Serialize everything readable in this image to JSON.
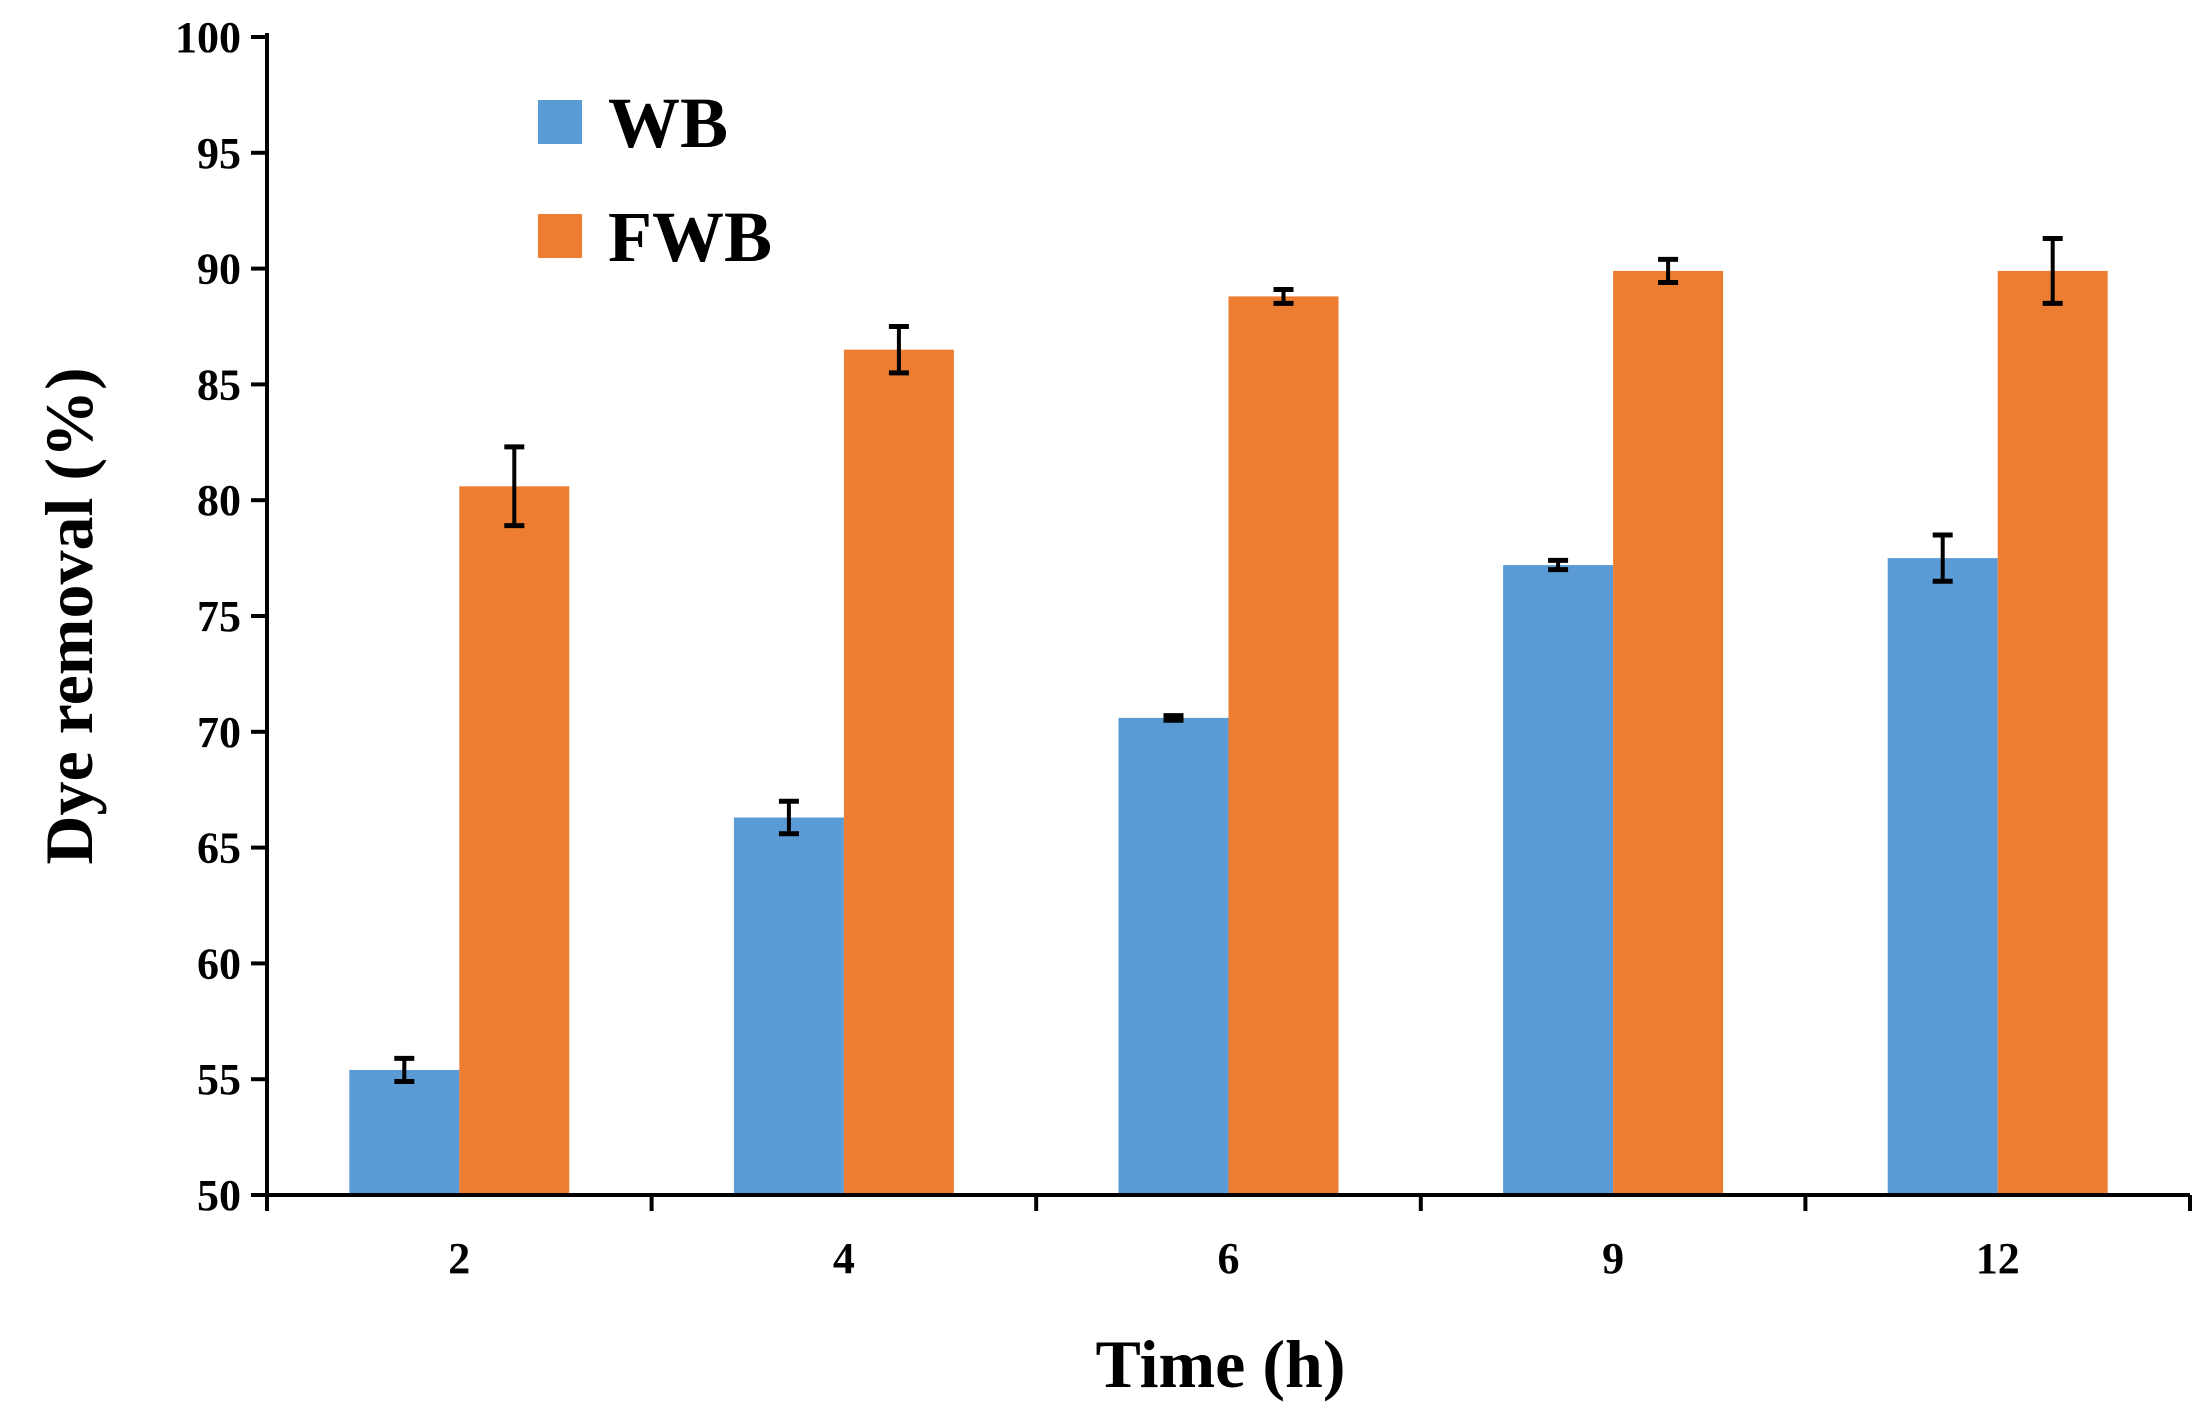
{
  "chart_data": {
    "type": "bar",
    "title": "",
    "xlabel": "Time (h)",
    "ylabel": "Dye removal (%)",
    "categories": [
      "2",
      "4",
      "6",
      "9",
      "12"
    ],
    "ylim": [
      50,
      100
    ],
    "yticks": [
      50,
      55,
      60,
      65,
      70,
      75,
      80,
      85,
      90,
      95,
      100
    ],
    "legend_position": "top-left",
    "grid": false,
    "error_bars": true,
    "series": [
      {
        "name": "WB",
        "color": "#5B9BD5",
        "values": [
          55.4,
          66.3,
          70.6,
          77.2,
          77.5
        ],
        "errors": [
          0.5,
          0.7,
          0.1,
          0.2,
          1.0
        ]
      },
      {
        "name": "FWB",
        "color": "#ED7D31",
        "values": [
          80.6,
          86.5,
          88.8,
          89.9,
          89.9
        ],
        "errors": [
          1.7,
          1.0,
          0.3,
          0.5,
          1.4
        ]
      }
    ]
  }
}
